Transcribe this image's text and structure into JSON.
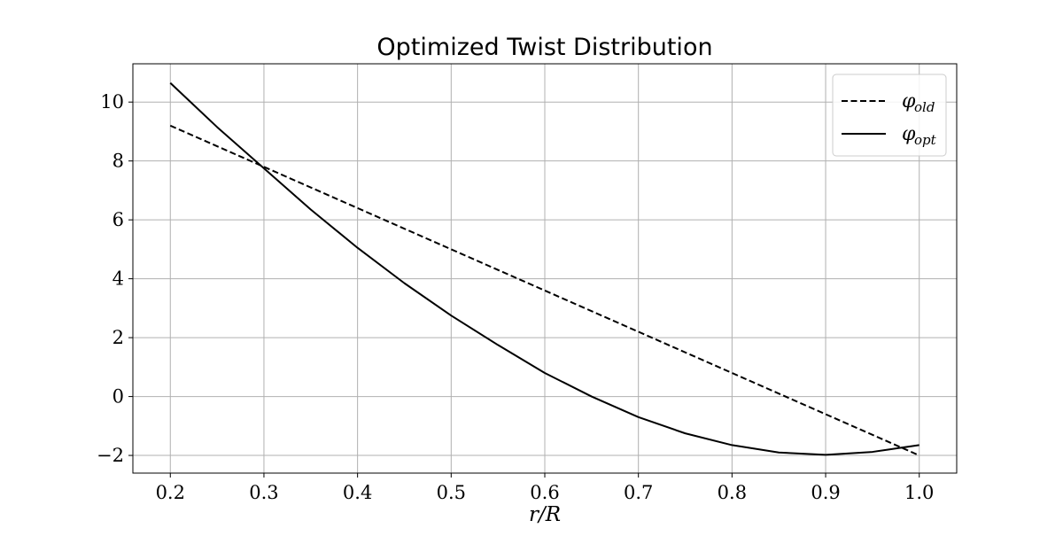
{
  "chart_data": {
    "type": "line",
    "title": "Optimized Twist Distribution",
    "xlabel": "r/R",
    "ylabel": "",
    "xlim": [
      0.16,
      1.04
    ],
    "ylim": [
      -2.6,
      11.3
    ],
    "xticks": [
      0.2,
      0.3,
      0.4,
      0.5,
      0.6,
      0.7,
      0.8,
      0.9,
      1.0
    ],
    "xtick_labels": [
      "0.2",
      "0.3",
      "0.4",
      "0.5",
      "0.6",
      "0.7",
      "0.8",
      "0.9",
      "1.0"
    ],
    "yticks": [
      -2,
      0,
      2,
      4,
      6,
      8,
      10
    ],
    "ytick_labels": [
      "−2",
      "0",
      "2",
      "4",
      "6",
      "8",
      "10"
    ],
    "grid": true,
    "legend_position": "top-right",
    "series": [
      {
        "name": "φold",
        "legend_symbol": "φ",
        "legend_subscript": "old",
        "style": "dashed",
        "color": "#000000",
        "x": [
          0.2,
          0.3,
          0.4,
          0.5,
          0.6,
          0.7,
          0.8,
          0.9,
          1.0
        ],
        "y": [
          9.2,
          7.8,
          6.4,
          5.0,
          3.6,
          2.2,
          0.8,
          -0.6,
          -2.0
        ]
      },
      {
        "name": "φopt",
        "legend_symbol": "φ",
        "legend_subscript": "opt",
        "style": "solid",
        "color": "#000000",
        "x": [
          0.2,
          0.25,
          0.3,
          0.35,
          0.4,
          0.45,
          0.5,
          0.55,
          0.6,
          0.65,
          0.7,
          0.75,
          0.8,
          0.85,
          0.9,
          0.95,
          1.0
        ],
        "y": [
          10.65,
          9.15,
          7.75,
          6.35,
          5.05,
          3.85,
          2.75,
          1.75,
          0.8,
          0.0,
          -0.7,
          -1.25,
          -1.65,
          -1.9,
          -1.98,
          -1.88,
          -1.65
        ]
      }
    ]
  }
}
